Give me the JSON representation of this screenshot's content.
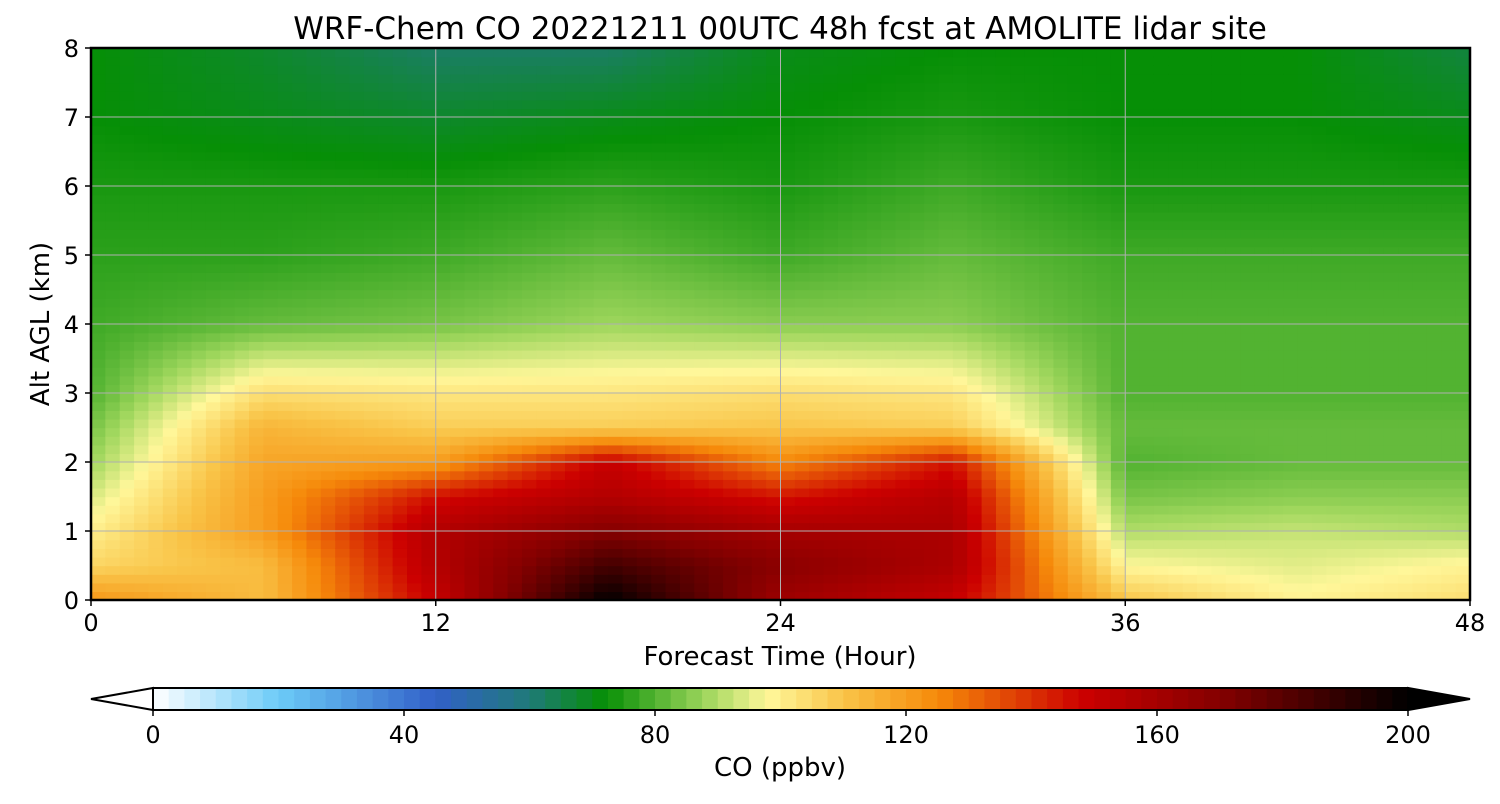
{
  "chart_data": {
    "type": "heatmap",
    "title": "WRF-Chem CO  20221211 00UTC 48h fcst at AMOLITE lidar site",
    "xlabel": "Forecast Time (Hour)",
    "ylabel": "Alt AGL (km)",
    "xlim": [
      0,
      48
    ],
    "ylim": [
      0,
      8
    ],
    "xticks": [
      "0",
      "12",
      "24",
      "36",
      "48"
    ],
    "yticks": [
      "0",
      "1",
      "2",
      "3",
      "4",
      "5",
      "6",
      "7",
      "8"
    ],
    "grid": true,
    "colorbar": {
      "label": "CO  (ppbv)",
      "range": [
        0,
        200
      ],
      "ticks": [
        "0",
        "40",
        "80",
        "120",
        "160",
        "200"
      ],
      "extend": "both",
      "color_stops": [
        {
          "value": 0,
          "color": "#ffffff"
        },
        {
          "value": 20,
          "color": "#6ccbf7"
        },
        {
          "value": 45,
          "color": "#3160c8"
        },
        {
          "value": 60,
          "color": "#1f7a78"
        },
        {
          "value": 72,
          "color": "#068f06"
        },
        {
          "value": 88,
          "color": "#9ed65c"
        },
        {
          "value": 98,
          "color": "#fff79a"
        },
        {
          "value": 110,
          "color": "#f9c448"
        },
        {
          "value": 125,
          "color": "#f68a0a"
        },
        {
          "value": 148,
          "color": "#cc0000"
        },
        {
          "value": 170,
          "color": "#840000"
        },
        {
          "value": 200,
          "color": "#000000"
        }
      ],
      "under_color": "#ffffff",
      "over_color": "#000000"
    },
    "time_hours": [
      0,
      6,
      12,
      18,
      24,
      30,
      36,
      42,
      48
    ],
    "altitude_km": [
      0,
      0.5,
      1,
      1.5,
      2,
      2.5,
      3,
      4,
      5,
      6,
      7,
      8
    ],
    "co_ppbv": [
      [
        122,
        112,
        150,
        200,
        162,
        150,
        110,
        99,
        104
      ],
      [
        106,
        112,
        155,
        185,
        168,
        158,
        98,
        95,
        99
      ],
      [
        100,
        120,
        156,
        170,
        160,
        158,
        90,
        92,
        90
      ],
      [
        94,
        120,
        146,
        156,
        145,
        155,
        84,
        86,
        86
      ],
      [
        88,
        118,
        120,
        150,
        125,
        145,
        80,
        82,
        82
      ],
      [
        84,
        114,
        108,
        108,
        110,
        108,
        82,
        82,
        82
      ],
      [
        80,
        104,
        102,
        102,
        104,
        102,
        80,
        80,
        80
      ],
      [
        78,
        82,
        84,
        88,
        86,
        86,
        80,
        80,
        80
      ],
      [
        76,
        76,
        78,
        82,
        78,
        82,
        78,
        78,
        78
      ],
      [
        74,
        74,
        74,
        76,
        74,
        78,
        74,
        74,
        74
      ],
      [
        72,
        70,
        68,
        70,
        72,
        74,
        72,
        72,
        70
      ],
      [
        72,
        68,
        62,
        62,
        70,
        72,
        72,
        72,
        66
      ]
    ]
  }
}
